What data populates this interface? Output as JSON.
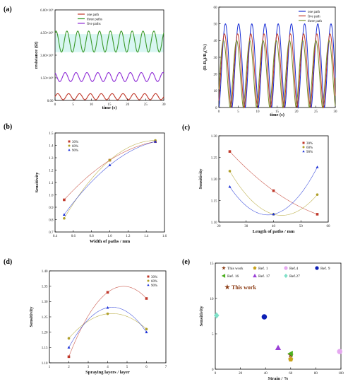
{
  "panel_labels": [
    "(a)",
    "(b)",
    "(c)",
    "(d)",
    "(e)"
  ],
  "colors": {
    "red": "#c0392b",
    "green": "#3a9a2a",
    "purple": "#8e2bd6",
    "blue": "#1a2fd6",
    "olive": "#7a8f2a",
    "axis": "#000000"
  },
  "chart_data": [
    {
      "id": "a-left",
      "type": "line",
      "ylabel": "resistance (Ω)",
      "xlabel": "time (s)",
      "xlim": [
        0,
        30
      ],
      "ylim": [
        0,
        6000000
      ],
      "xticks": [
        "0",
        "5",
        "10",
        "15",
        "20",
        "25",
        "30"
      ],
      "yticks": [
        "0.00",
        "1.50×10⁶",
        "3.00×10⁶",
        "4.50×10⁶",
        "6.00×10⁶"
      ],
      "series": [
        {
          "name": "one path",
          "color": "#c0392b",
          "base": 250000,
          "amp": 200000
        },
        {
          "name": "three paths",
          "color": "#3a9a2a",
          "base": 3900000,
          "amp": 700000
        },
        {
          "name": "five paths",
          "color": "#8e2bd6",
          "base": 1550000,
          "amp": 300000
        }
      ],
      "period": 3
    },
    {
      "id": "a-right",
      "type": "line",
      "ylabel": "(R-R₀)/R₀(%)",
      "xlabel": "time (s)",
      "xlim": [
        0,
        30
      ],
      "ylim": [
        0,
        60
      ],
      "xticks": [
        "0",
        "5",
        "10",
        "15",
        "20",
        "25",
        "30"
      ],
      "yticks": [
        "0",
        "10",
        "20",
        "30",
        "40",
        "50",
        "60"
      ],
      "series": [
        {
          "name": "one path",
          "color": "#1a2fd6",
          "peak": 50
        },
        {
          "name": "five path",
          "color": "#c0392b",
          "peak": 44
        },
        {
          "name": "three path",
          "color": "#7a8f2a",
          "peak": 40
        }
      ],
      "period": 3.4
    },
    {
      "id": "b",
      "type": "scatter",
      "xlabel": "Width of paths / mm",
      "ylabel": "Sensitivity",
      "xlim": [
        0.4,
        1.6
      ],
      "ylim": [
        0.7,
        1.5
      ],
      "xticks": [
        "0.4",
        "0.6",
        "0.8",
        "1.0",
        "1.2",
        "1.4",
        "1.6"
      ],
      "yticks": [
        "0.7",
        "0.8",
        "0.9",
        "1.0",
        "1.1",
        "1.2",
        "1.3",
        "1.4",
        "1.5"
      ],
      "x": [
        0.5,
        1.0,
        1.5
      ],
      "series": [
        {
          "name": "30%",
          "color": "#c0392b",
          "marker": "square",
          "values": [
            0.96,
            1.28,
            1.43
          ]
        },
        {
          "name": "60%",
          "color": "#b0a02a",
          "marker": "circle",
          "values": [
            0.81,
            1.28,
            1.44
          ]
        },
        {
          "name": "90%",
          "color": "#1a2fd6",
          "marker": "triangle",
          "values": [
            0.84,
            1.24,
            1.43
          ]
        }
      ]
    },
    {
      "id": "c",
      "type": "scatter",
      "xlabel": "Length of paths / mm",
      "ylabel": "Sensitivity",
      "xlim": [
        15,
        65
      ],
      "ylim": [
        1.09,
        1.31
      ],
      "xticks": [
        "20",
        "30",
        "40",
        "50",
        "60"
      ],
      "yticks": [
        "1.10",
        "1.15",
        "1.20",
        "1.25",
        "1.30"
      ],
      "x": [
        20,
        40,
        60
      ],
      "series": [
        {
          "name": "30%",
          "color": "#c0392b",
          "marker": "square",
          "values": [
            1.27,
            1.17,
            1.11
          ]
        },
        {
          "name": "60%",
          "color": "#b0a02a",
          "marker": "circle",
          "values": [
            1.22,
            1.11,
            1.16
          ]
        },
        {
          "name": "90%",
          "color": "#1a2fd6",
          "marker": "triangle",
          "values": [
            1.18,
            1.11,
            1.23
          ]
        }
      ]
    },
    {
      "id": "d",
      "type": "scatter",
      "xlabel": "Spraying layers / layer",
      "ylabel": "Sensitivity",
      "xlim": [
        1,
        7
      ],
      "ylim": [
        1.1,
        1.4
      ],
      "xticks": [
        "1",
        "2",
        "3",
        "4",
        "5",
        "6",
        "7"
      ],
      "yticks": [
        "1.10",
        "1.15",
        "1.20",
        "1.25",
        "1.30",
        "1.35",
        "1.40"
      ],
      "x": [
        2,
        4,
        6
      ],
      "series": [
        {
          "name": "30%",
          "color": "#c0392b",
          "marker": "square",
          "values": [
            1.12,
            1.33,
            1.31
          ]
        },
        {
          "name": "60%",
          "color": "#b0a02a",
          "marker": "circle",
          "values": [
            1.18,
            1.26,
            1.21
          ]
        },
        {
          "name": "90%",
          "color": "#1a2fd6",
          "marker": "triangle",
          "values": [
            1.15,
            1.28,
            1.2
          ]
        }
      ]
    },
    {
      "id": "e",
      "type": "scatter",
      "xlabel": "Strain / %",
      "ylabel": "Sensitivity",
      "xlim": [
        0,
        100
      ],
      "ylim": [
        0,
        15
      ],
      "xticks": [
        "0",
        "20",
        "40",
        "60",
        "80",
        "100"
      ],
      "yticks": [
        "0",
        "5",
        "10",
        "15"
      ],
      "annotation": "This work",
      "points": [
        {
          "name": "This work",
          "color": "#8b3a12",
          "marker": "star",
          "x": 60,
          "y": 2.0
        },
        {
          "name": "Ref. 1",
          "color": "#c8a21a",
          "marker": "pentagon",
          "x": 60,
          "y": 1.4
        },
        {
          "name": "Ref.4",
          "color": "#e5a8f0",
          "marker": "circle",
          "x": 99,
          "y": 2.5
        },
        {
          "name": "Ref. 9",
          "color": "#0d1fb5",
          "marker": "circle",
          "x": 39,
          "y": 7.4
        },
        {
          "name": "Ref. 16",
          "color": "#4caf1e",
          "marker": "tri-left",
          "x": 60,
          "y": 2.2
        },
        {
          "name": "Ref. 17",
          "color": "#9a3fd6",
          "marker": "triangle",
          "x": 50,
          "y": 3.0
        },
        {
          "name": "Ref.27",
          "color": "#7fe0c8",
          "marker": "diamond",
          "x": 1,
          "y": 7.6
        }
      ]
    }
  ]
}
